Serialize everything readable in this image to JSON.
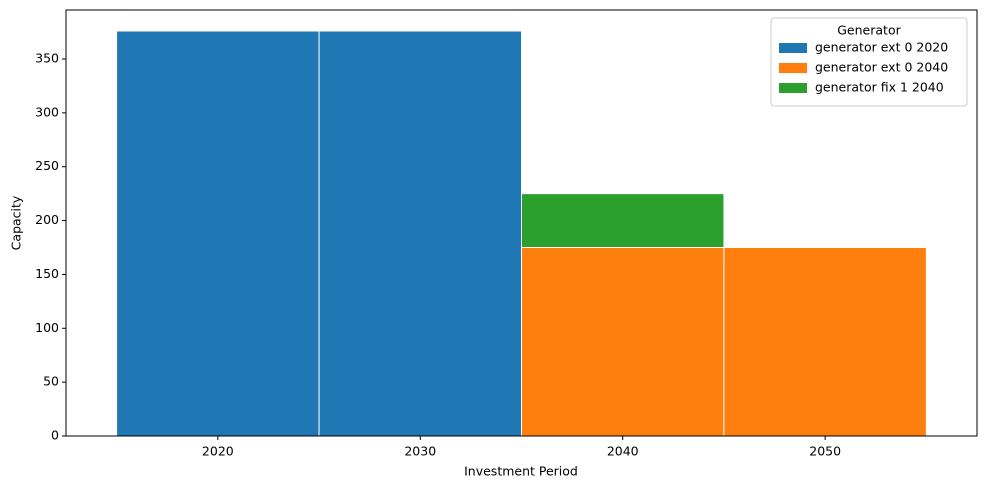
{
  "chart_data": {
    "type": "stacked-bar",
    "x_label": "Investment Period",
    "y_label": "Capacity",
    "categories": [
      "2020",
      "2030",
      "2040",
      "2050"
    ],
    "series": [
      {
        "name": "generator ext 0 2020",
        "color": "#1f77b4",
        "values": [
          376,
          376,
          0,
          0
        ]
      },
      {
        "name": "generator ext 0 2040",
        "color": "#ff7f0e",
        "values": [
          0,
          0,
          175,
          175
        ]
      },
      {
        "name": "generator fix 1 2040",
        "color": "#2ca02c",
        "values": [
          0,
          0,
          50,
          0
        ]
      }
    ],
    "legend_title": "Generator",
    "legend_position": "upper-right",
    "ylim": [
      0,
      395.5
    ],
    "yticks": [
      0,
      50,
      100,
      150,
      200,
      250,
      300,
      350
    ],
    "grid": false
  }
}
